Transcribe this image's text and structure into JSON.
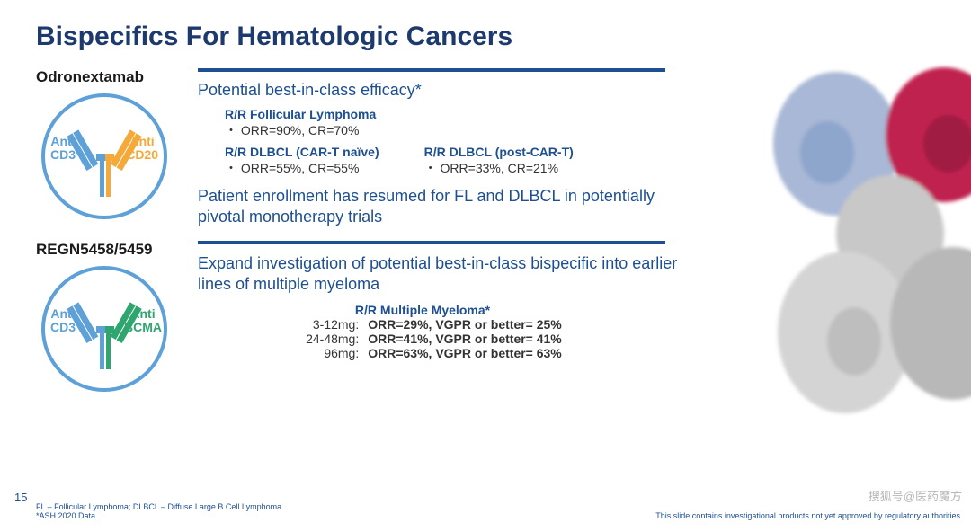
{
  "title": "Bispecifics For Hematologic Cancers",
  "drug1": {
    "name": "Odronextamab",
    "armL": {
      "line1": "Anti",
      "line2": "CD3",
      "color": "#5ea0d8"
    },
    "armR": {
      "line1": "Anti",
      "line2": "CD20",
      "color": "#f4a938"
    },
    "lead": "Potential best-in-class efficacy*",
    "fl": {
      "h": "R/R Follicular Lymphoma",
      "b": "・ ORR=90%, CR=70%"
    },
    "d1": {
      "h": "R/R DLBCL (CAR-T naïve)",
      "b": "・ ORR=55%, CR=55%"
    },
    "d2": {
      "h": "R/R DLBCL (post-CAR-T)",
      "b": "・ ORR=33%, CR=21%"
    },
    "note": "Patient enrollment has resumed for FL and DLBCL in potentially pivotal monotherapy trials"
  },
  "drug2": {
    "name": "REGN5458/5459",
    "armL": {
      "line1": "Anti",
      "line2": "CD3",
      "color": "#5ea0d8"
    },
    "armR": {
      "line1": "Anti",
      "line2": "BCMA",
      "color": "#2fa56f"
    },
    "lead": "Expand investigation of potential best-in-class bispecific into earlier lines of multiple myeloma",
    "mmh": "R/R Multiple Myeloma*",
    "rows": [
      {
        "d": "3-12mg:",
        "v": "ORR=29%, VGPR or better= 25%"
      },
      {
        "d": "24-48mg:",
        "v": "ORR=41%, VGPR or better= 41%"
      },
      {
        "d": "96mg:",
        "v": "ORR=63%, VGPR or better= 63%"
      }
    ]
  },
  "pagenum": "15",
  "foot1": "FL – Follicular Lymphoma; DLBCL – Diffuse Large B Cell Lymphoma",
  "foot2": "*ASH 2020 Data",
  "foot3": "This slide contains investigational products not yet approved by regulatory authorities",
  "watermark": "搜狐号@医药魔方",
  "colors": {
    "primary": "#1d4f91",
    "circle": "#5ea0d8"
  },
  "protein": {
    "lobes": [
      "#a8b8d6",
      "#c02050",
      "#c8c8c8",
      "#d4d4d4",
      "#b8b8b8"
    ]
  }
}
